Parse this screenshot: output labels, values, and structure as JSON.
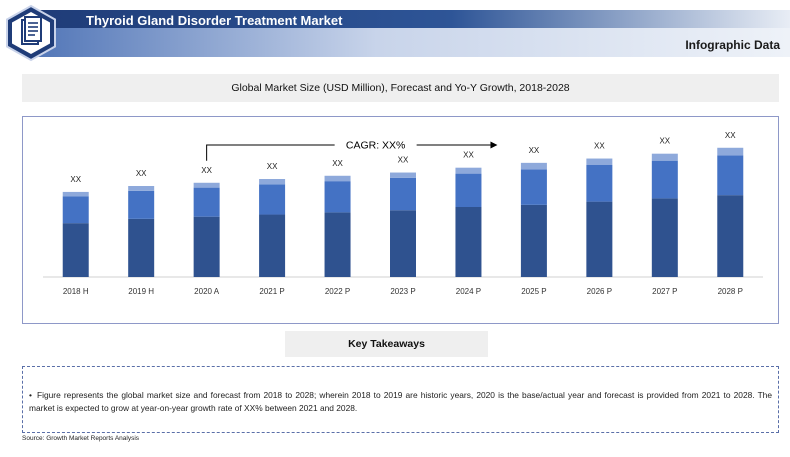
{
  "header": {
    "title": "Thyroid Gland Disorder Treatment Market",
    "subtitle": "Infographic Data",
    "badge_icon": "document-icon"
  },
  "chart_title": "Global Market Size (USD Million), Forecast and Yo-Y Growth, 2018-2028",
  "chart_data": {
    "type": "bar",
    "stacked": true,
    "categories": [
      "2018 H",
      "2019 H",
      "2020 A",
      "2021 P",
      "2022 P",
      "2023 P",
      "2024 P",
      "2025 P",
      "2026 P",
      "2027 P",
      "2028 P"
    ],
    "series": [
      {
        "values": [
          50,
          54,
          56,
          58,
          60,
          62,
          65,
          67,
          70,
          73,
          76
        ],
        "color": "#2f528f"
      },
      {
        "values": [
          25,
          26,
          27,
          28,
          29,
          30,
          31,
          33,
          34,
          35,
          37
        ],
        "color": "#4472c4"
      },
      {
        "values": [
          4,
          4.5,
          4.5,
          5,
          5,
          5,
          5.5,
          6,
          6,
          6.5,
          7
        ],
        "color": "#8ea9db"
      }
    ],
    "data_labels": [
      "XX",
      "XX",
      "XX",
      "XX",
      "XX",
      "XX",
      "XX",
      "XX",
      "XX",
      "XX",
      "XX"
    ],
    "annotation": "CAGR: XX%",
    "ylim": [
      0,
      130
    ],
    "grid": false
  },
  "takeaways": {
    "heading": "Key Takeaways",
    "text": "Figure represents the global market size and forecast from 2018 to 2028; wherein 2018 to 2019 are historic years, 2020 is the base/actual year and forecast is provided from 2021 to 2028. The market is expected to grow at year-on-year growth rate of XX% between 2021 and 2028."
  },
  "source": "Source: Growth Market Reports Analysis",
  "colors": {
    "banner_dark": "#1f3c78",
    "frame": "#8e98c8",
    "bar_dark": "#2f528f",
    "bar_mid": "#4472c4",
    "bar_light": "#8ea9db"
  }
}
